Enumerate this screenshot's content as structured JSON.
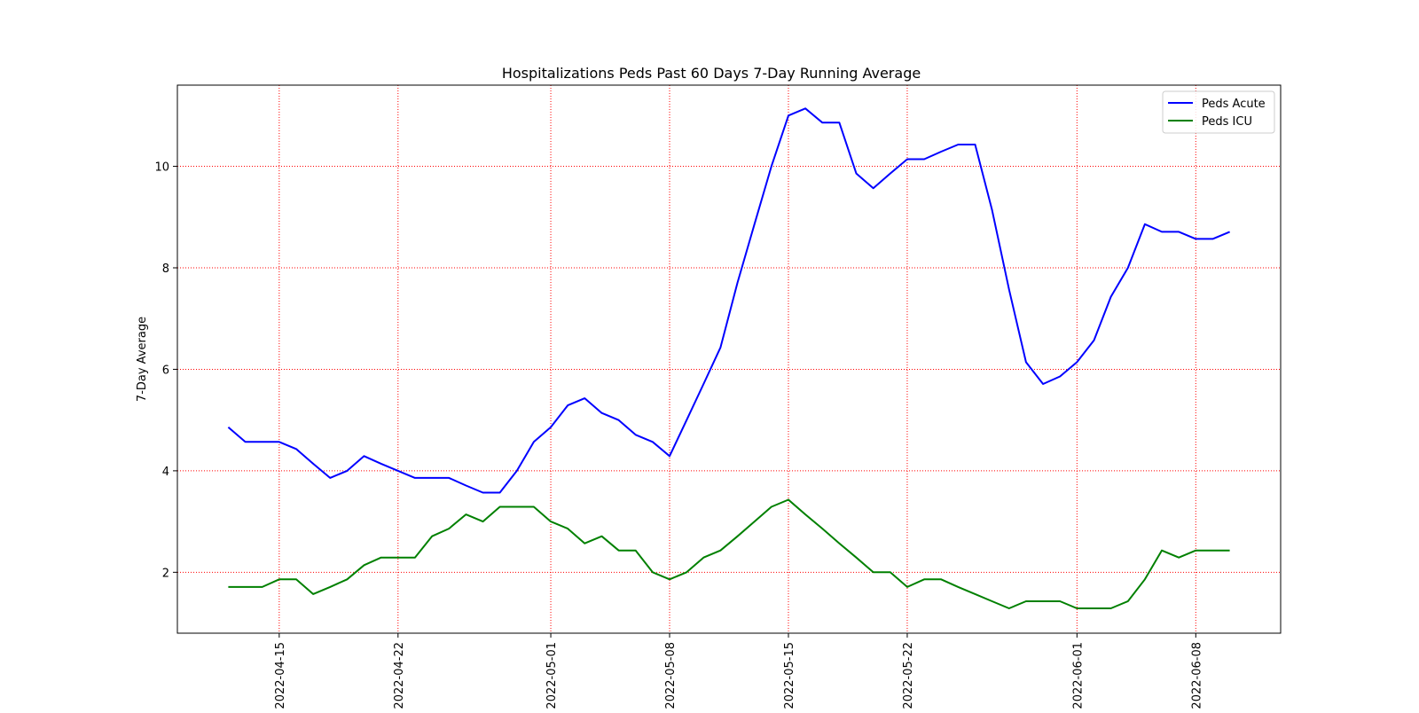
{
  "chart_data": {
    "type": "line",
    "title": "Hospitalizations Peds Past 60 Days 7-Day Running Average",
    "ylabel": "7-Day Average",
    "xlabel": "",
    "x_start": "2022-04-12",
    "x_end": "2022-06-11",
    "xlim": [
      "2022-04-09",
      "2022-06-13"
    ],
    "ylim": [
      0.8,
      11.6
    ],
    "grid": true,
    "grid_color": "#ff0000",
    "legend_position": "top-right",
    "xticks": [
      "2022-04-15",
      "2022-04-22",
      "2022-05-01",
      "2022-05-08",
      "2022-05-15",
      "2022-05-22",
      "2022-06-01",
      "2022-06-08"
    ],
    "yticks": [
      2,
      4,
      6,
      8,
      10
    ],
    "series": [
      {
        "name": "Peds Acute",
        "color": "#0000ff",
        "values": [
          4.86,
          4.57,
          4.57,
          4.57,
          4.43,
          4.14,
          3.86,
          4.0,
          4.29,
          4.14,
          4.0,
          3.86,
          3.86,
          3.86,
          3.71,
          3.57,
          3.57,
          4.0,
          4.57,
          4.86,
          5.29,
          5.43,
          5.14,
          5.0,
          4.71,
          4.57,
          4.29,
          5.0,
          5.71,
          6.43,
          7.71,
          8.86,
          10.0,
          11.0,
          11.14,
          10.86,
          10.86,
          9.86,
          9.57,
          9.86,
          10.14,
          10.14,
          10.29,
          10.43,
          10.43,
          9.14,
          7.57,
          6.14,
          5.71,
          5.86,
          6.14,
          6.57,
          7.43,
          8.0,
          8.86,
          8.71,
          8.71,
          8.57,
          8.57,
          8.71
        ]
      },
      {
        "name": "Peds ICU",
        "color": "#008000",
        "values": [
          1.71,
          1.71,
          1.71,
          1.86,
          1.86,
          1.57,
          1.71,
          1.86,
          2.14,
          2.29,
          2.29,
          2.29,
          2.71,
          2.86,
          3.14,
          3.0,
          3.29,
          3.29,
          3.29,
          3.0,
          2.86,
          2.57,
          2.71,
          2.43,
          2.43,
          2.0,
          1.86,
          2.0,
          2.29,
          2.43,
          2.71,
          3.0,
          3.29,
          3.43,
          3.14,
          2.86,
          2.57,
          2.29,
          2.0,
          2.0,
          1.71,
          1.86,
          1.86,
          1.71,
          1.57,
          1.43,
          1.29,
          1.43,
          1.43,
          1.43,
          1.29,
          1.29,
          1.29,
          1.43,
          1.86,
          2.43,
          2.29,
          2.43,
          2.43,
          2.43
        ]
      }
    ]
  }
}
